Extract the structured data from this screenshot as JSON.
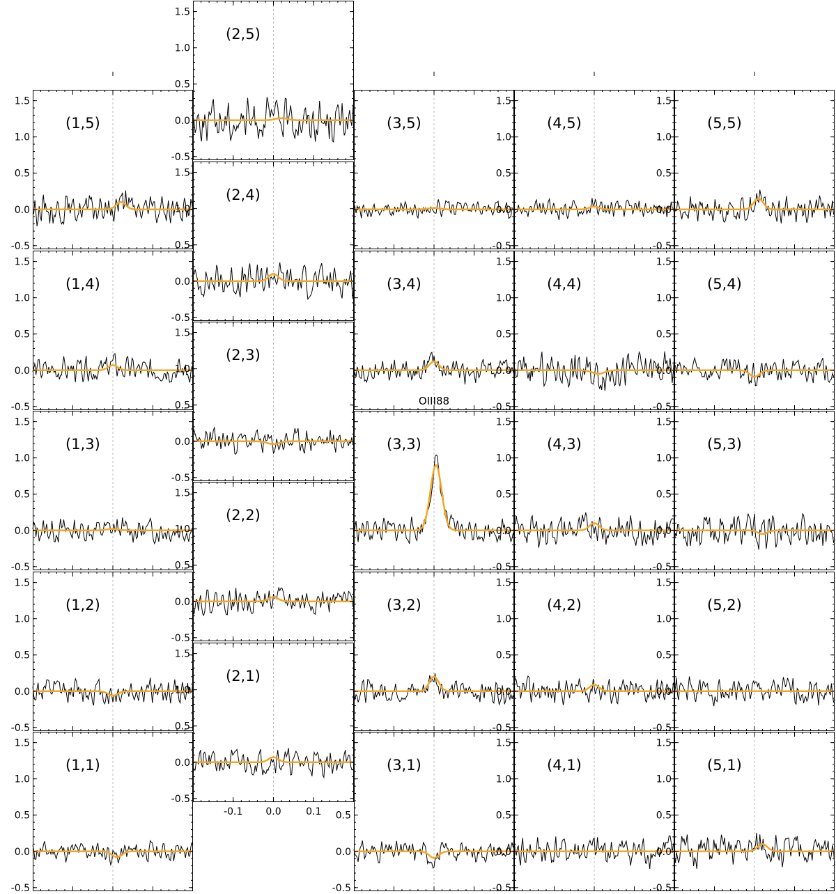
{
  "line_label": "OIII88",
  "colors": {
    "spectrum": "#000000",
    "fit": "#f5a623",
    "zero_line": "#bbbbbb",
    "frame": "#000000"
  },
  "chart_data": {
    "type": "line",
    "layout": "5x5 grid of spectra",
    "x_range": [
      -0.2,
      0.2
    ],
    "y_range": [
      -0.55,
      1.65
    ],
    "x_tick_labels": [
      "-0.1",
      "0.0",
      "0.1"
    ],
    "y_tick_labels": [
      "-0.5",
      "0.0",
      "0.5",
      "1.0",
      "1.5"
    ],
    "grid": false,
    "panels": [
      {
        "label": "(1,5)",
        "col": 1,
        "row": 5,
        "fit_amp": 0.1,
        "fit_center": 0.02,
        "fit_sigma": 0.012,
        "noise": 0.14,
        "seed": 15
      },
      {
        "label": "(1,4)",
        "col": 1,
        "row": 4,
        "fit_amp": 0.07,
        "fit_center": 0.0,
        "fit_sigma": 0.012,
        "noise": 0.12,
        "seed": 14
      },
      {
        "label": "(1,3)",
        "col": 1,
        "row": 3,
        "fit_amp": 0.02,
        "fit_center": 0.0,
        "fit_sigma": 0.015,
        "noise": 0.12,
        "seed": 13
      },
      {
        "label": "(1,2)",
        "col": 1,
        "row": 2,
        "fit_amp": -0.06,
        "fit_center": 0.0,
        "fit_sigma": 0.012,
        "noise": 0.13,
        "seed": 12
      },
      {
        "label": "(1,1)",
        "col": 1,
        "row": 1,
        "fit_amp": -0.08,
        "fit_center": 0.01,
        "fit_sigma": 0.012,
        "noise": 0.1,
        "seed": 11
      },
      {
        "label": "(2,5)",
        "col": 2,
        "row": 5,
        "fit_amp": 0.03,
        "fit_center": 0.02,
        "fit_sigma": 0.015,
        "noise": 0.2,
        "seed": 25
      },
      {
        "label": "(2,4)",
        "col": 2,
        "row": 4,
        "fit_amp": 0.1,
        "fit_center": 0.0,
        "fit_sigma": 0.012,
        "noise": 0.16,
        "seed": 24
      },
      {
        "label": "(2,3)",
        "col": 2,
        "row": 3,
        "fit_amp": -0.04,
        "fit_center": 0.0,
        "fit_sigma": 0.015,
        "noise": 0.12,
        "seed": 23
      },
      {
        "label": "(2,2)",
        "col": 2,
        "row": 2,
        "fit_amp": 0.06,
        "fit_center": 0.0,
        "fit_sigma": 0.012,
        "noise": 0.12,
        "seed": 22
      },
      {
        "label": "(2,1)",
        "col": 2,
        "row": 1,
        "fit_amp": 0.07,
        "fit_center": 0.0,
        "fit_sigma": 0.012,
        "noise": 0.13,
        "seed": 21
      },
      {
        "label": "(3,5)",
        "col": 3,
        "row": 5,
        "fit_amp": 0.02,
        "fit_center": 0.0,
        "fit_sigma": 0.015,
        "noise": 0.08,
        "seed": 35
      },
      {
        "label": "(3,4)",
        "col": 3,
        "row": 4,
        "fit_amp": 0.12,
        "fit_center": 0.0,
        "fit_sigma": 0.012,
        "noise": 0.12,
        "seed": 34
      },
      {
        "label": "(3,3)",
        "col": 3,
        "row": 3,
        "fit_amp": 0.9,
        "fit_center": 0.005,
        "fit_sigma": 0.014,
        "noise": 0.12,
        "seed": 33
      },
      {
        "label": "(3,2)",
        "col": 3,
        "row": 2,
        "fit_amp": 0.2,
        "fit_center": 0.0,
        "fit_sigma": 0.012,
        "noise": 0.11,
        "seed": 32
      },
      {
        "label": "(3,1)",
        "col": 3,
        "row": 1,
        "fit_amp": -0.09,
        "fit_center": 0.0,
        "fit_sigma": 0.012,
        "noise": 0.1,
        "seed": 31
      },
      {
        "label": "(4,5)",
        "col": 4,
        "row": 5,
        "fit_amp": 0.04,
        "fit_center": 0.0,
        "fit_sigma": 0.012,
        "noise": 0.09,
        "seed": 45
      },
      {
        "label": "(4,4)",
        "col": 4,
        "row": 4,
        "fit_amp": -0.05,
        "fit_center": 0.01,
        "fit_sigma": 0.015,
        "noise": 0.17,
        "seed": 44
      },
      {
        "label": "(4,3)",
        "col": 4,
        "row": 3,
        "fit_amp": 0.1,
        "fit_center": 0.0,
        "fit_sigma": 0.012,
        "noise": 0.15,
        "seed": 43
      },
      {
        "label": "(4,2)",
        "col": 4,
        "row": 2,
        "fit_amp": 0.09,
        "fit_center": 0.0,
        "fit_sigma": 0.012,
        "noise": 0.13,
        "seed": 42
      },
      {
        "label": "(4,1)",
        "col": 4,
        "row": 1,
        "fit_amp": 0.0,
        "fit_center": 0.0,
        "fit_sigma": 0.012,
        "noise": 0.16,
        "seed": 41
      },
      {
        "label": "(5,5)",
        "col": 5,
        "row": 5,
        "fit_amp": 0.15,
        "fit_center": 0.01,
        "fit_sigma": 0.012,
        "noise": 0.13,
        "seed": 55
      },
      {
        "label": "(5,4)",
        "col": 5,
        "row": 4,
        "fit_amp": -0.09,
        "fit_center": 0.0,
        "fit_sigma": 0.012,
        "noise": 0.12,
        "seed": 54
      },
      {
        "label": "(5,3)",
        "col": 5,
        "row": 3,
        "fit_amp": -0.05,
        "fit_center": 0.02,
        "fit_sigma": 0.012,
        "noise": 0.17,
        "seed": 53
      },
      {
        "label": "(5,2)",
        "col": 5,
        "row": 2,
        "fit_amp": 0.0,
        "fit_center": 0.0,
        "fit_sigma": 0.012,
        "noise": 0.13,
        "seed": 52
      },
      {
        "label": "(5,1)",
        "col": 5,
        "row": 1,
        "fit_amp": 0.1,
        "fit_center": 0.02,
        "fit_sigma": 0.012,
        "noise": 0.16,
        "seed": 51
      }
    ]
  }
}
